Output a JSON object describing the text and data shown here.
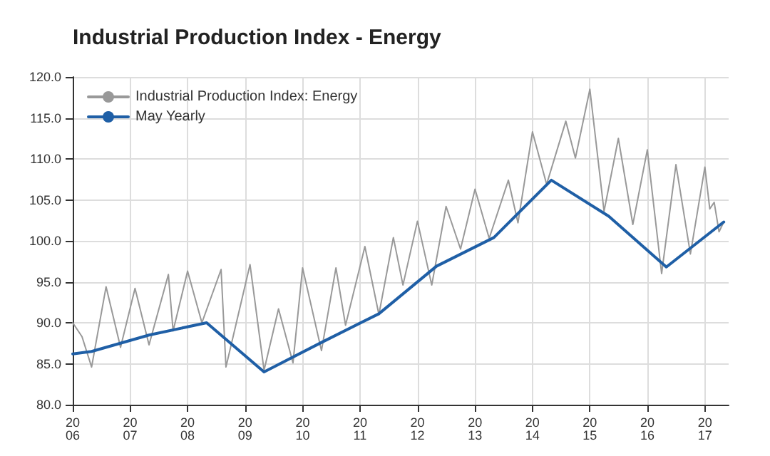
{
  "chart_data": {
    "type": "line",
    "title": "Industrial Production Index - Energy",
    "xlim": [
      "2006-01",
      "2017-06"
    ],
    "xticks": [
      "2006",
      "2007",
      "2008",
      "2009",
      "2010",
      "2011",
      "2012",
      "2013",
      "2014",
      "2015",
      "2016",
      "2017"
    ],
    "ylim": [
      80,
      120
    ],
    "yticks": [
      {
        "value": 80,
        "label": "80.0"
      },
      {
        "value": 85,
        "label": "85.0"
      },
      {
        "value": 90,
        "label": "90.0"
      },
      {
        "value": 95,
        "label": "95.0"
      },
      {
        "value": 100,
        "label": "100.0"
      },
      {
        "value": 105,
        "label": "105.0"
      },
      {
        "value": 110,
        "label": "110.0"
      },
      {
        "value": 115,
        "label": "115.0"
      },
      {
        "value": 120,
        "label": "120.0"
      }
    ],
    "grid": true,
    "legend": "top left",
    "marker": "none",
    "line_style": "solid",
    "series": [
      {
        "name": "Industrial Production Index: Energy",
        "color": "#999999",
        "x": [
          "2006-01",
          "2006-03",
          "2006-05",
          "2006-08",
          "2006-11",
          "2007-02",
          "2007-05",
          "2007-09",
          "2007-10",
          "2008-01",
          "2008-04",
          "2008-08",
          "2008-09",
          "2009-02",
          "2009-05",
          "2009-08",
          "2009-11",
          "2010-01",
          "2010-05",
          "2010-08",
          "2010-10",
          "2011-02",
          "2011-05",
          "2011-08",
          "2011-10",
          "2012-01",
          "2012-04",
          "2012-07",
          "2012-10",
          "2013-01",
          "2013-04",
          "2013-08",
          "2013-10",
          "2014-01",
          "2014-04",
          "2014-08",
          "2014-10",
          "2015-01",
          "2015-04",
          "2015-07",
          "2015-10",
          "2016-01",
          "2016-04",
          "2016-07",
          "2016-10",
          "2017-01",
          "2017-02",
          "2017-03",
          "2017-04",
          "2017-05"
        ],
        "values": [
          90.0,
          88.3,
          84.6,
          94.4,
          87.0,
          94.2,
          87.3,
          95.9,
          89.0,
          96.3,
          90.0,
          96.5,
          84.6,
          97.1,
          84.2,
          91.7,
          85.1,
          96.7,
          86.6,
          96.7,
          89.7,
          99.3,
          91.0,
          100.4,
          94.6,
          102.4,
          94.6,
          104.2,
          99.0,
          106.3,
          100.3,
          107.4,
          102.2,
          113.3,
          106.9,
          114.6,
          110.1,
          118.5,
          103.6,
          112.5,
          102.0,
          111.1,
          96.0,
          109.3,
          98.4,
          109.0,
          103.9,
          104.7,
          101.1,
          102.3
        ]
      },
      {
        "name": "May Yearly",
        "color": "#1f5fa6",
        "x": [
          "2006-01",
          "2006-05",
          "2007-05",
          "2008-05",
          "2009-05",
          "2010-05",
          "2011-05",
          "2012-05",
          "2013-05",
          "2014-05",
          "2015-05",
          "2016-05",
          "2017-05"
        ],
        "values": [
          86.2,
          86.5,
          88.5,
          90.0,
          84.0,
          87.6,
          91.1,
          96.9,
          100.4,
          107.4,
          103.0,
          96.8,
          102.3
        ]
      }
    ]
  }
}
